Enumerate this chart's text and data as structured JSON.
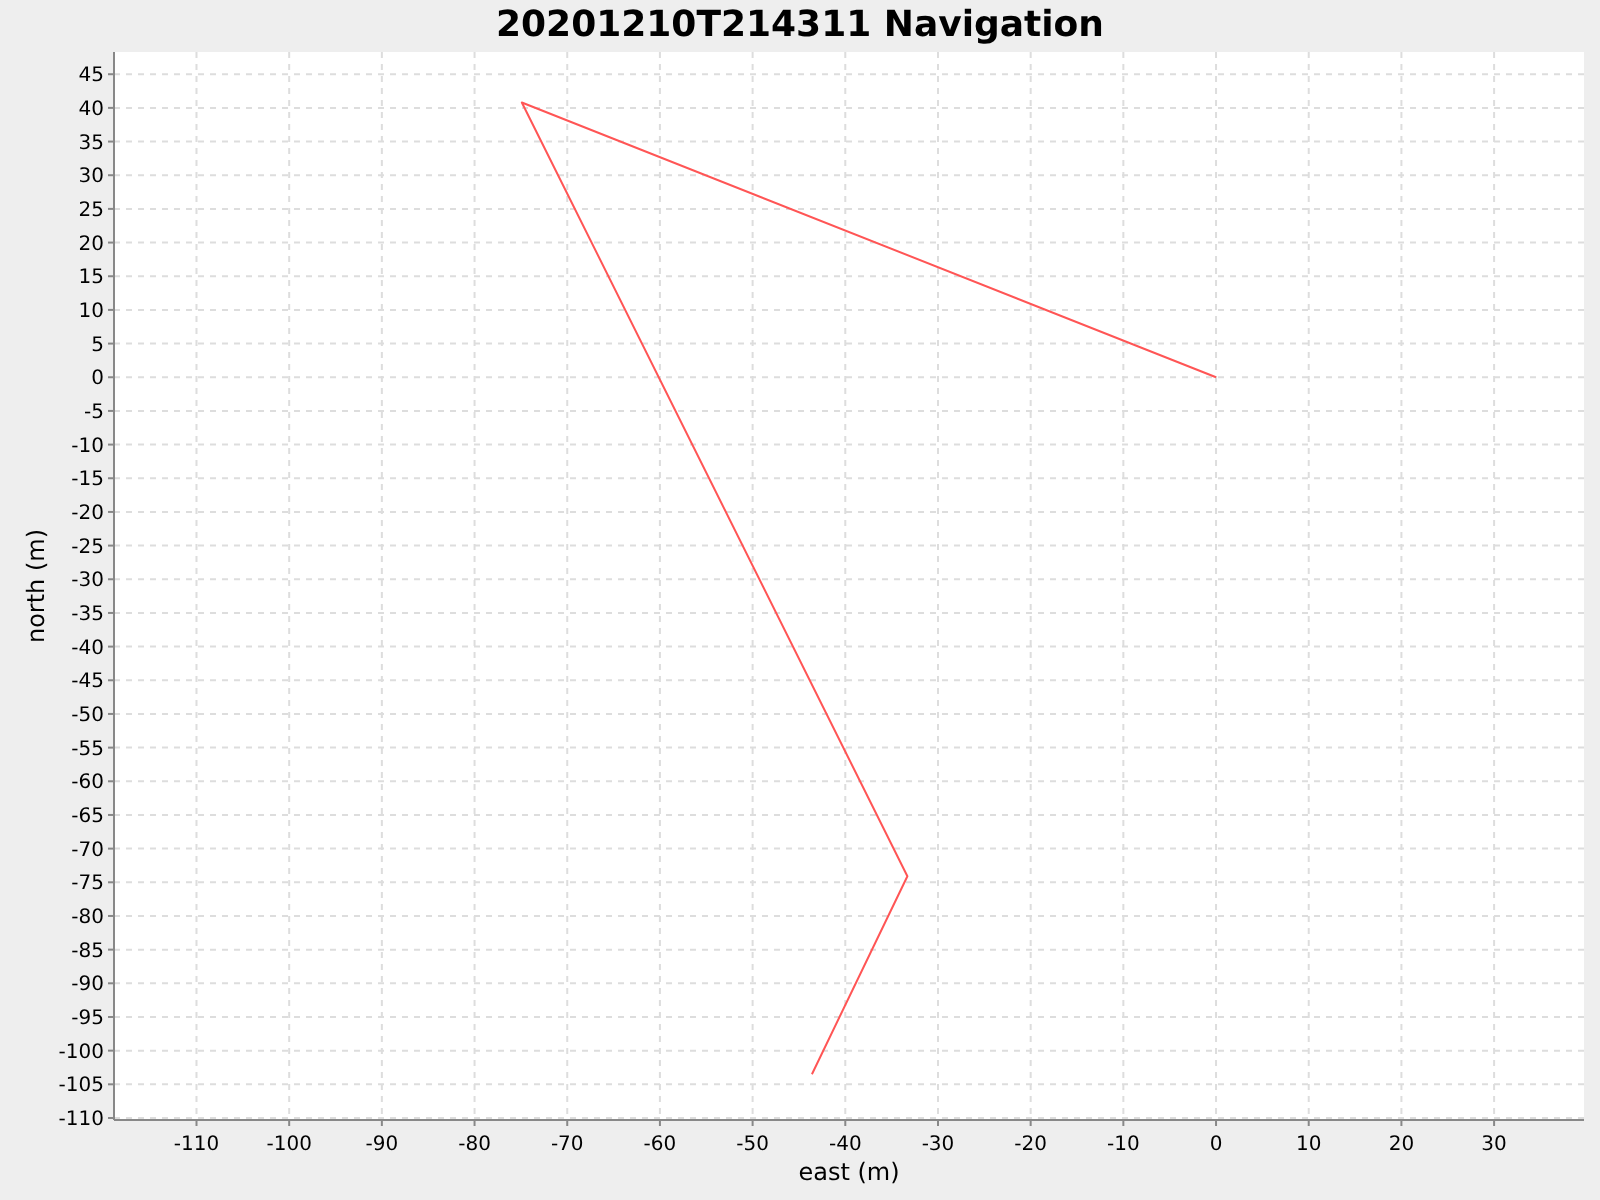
{
  "chart_data": {
    "type": "line",
    "title": "20201210T214311 Navigation",
    "xlabel": "east (m)",
    "ylabel": "north (m)",
    "x": [
      0,
      -74.9,
      -33.3,
      -43.6
    ],
    "series": [
      {
        "color": "#ff5555",
        "values": [
          0,
          40.8,
          -74.1,
          -103.5
        ]
      }
    ],
    "xlim": [
      -118.9,
      39.7
    ],
    "ylim": [
      -110.3,
      48.3
    ],
    "xticks": [
      -110,
      -100,
      -90,
      -80,
      -70,
      -60,
      -50,
      -40,
      -30,
      -20,
      -10,
      0,
      10,
      20,
      30
    ],
    "yticks": [
      45,
      40,
      35,
      30,
      25,
      20,
      15,
      10,
      5,
      0,
      -5,
      -10,
      -15,
      -20,
      -25,
      -30,
      -35,
      -40,
      -45,
      -50,
      -55,
      -60,
      -65,
      -70,
      -75,
      -80,
      -85,
      -90,
      -95,
      -100,
      -105,
      -110
    ],
    "grid": true,
    "marker": "none",
    "line_style": "solid"
  }
}
